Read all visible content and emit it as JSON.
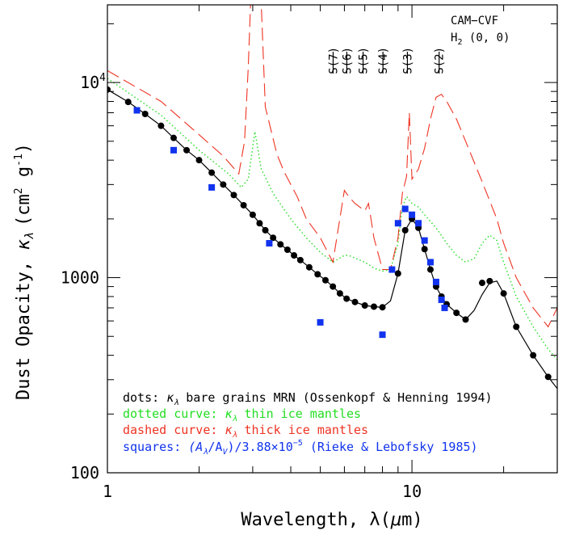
{
  "chart_data": {
    "type": "line",
    "xlabel_prefix": "Wavelength, λ(",
    "xlabel_unit_mu": "μ",
    "xlabel_unit_rest": "m)",
    "ylabel_prefix": "Dust Opacity, ",
    "ylabel_kappa": "κ",
    "ylabel_sub": "λ",
    "ylabel_unit": "(cm",
    "ylabel_unit_sup": "2",
    "ylabel_unit_g": " g",
    "ylabel_unit_sup2": "-1",
    "ylabel_unit_close": ")",
    "x_scale": "log",
    "y_scale": "log",
    "xlim": [
      1,
      30
    ],
    "ylim": [
      100,
      25000
    ],
    "x_tick_labels": [
      {
        "value": 1,
        "label": "1"
      },
      {
        "value": 10,
        "label": "10"
      }
    ],
    "y_tick_labels": [
      {
        "value": 100,
        "label": "100"
      },
      {
        "value": 1000,
        "label": "1000"
      },
      {
        "value": 10000,
        "label": "10",
        "sup": "4"
      }
    ],
    "annotation": {
      "line1": "CAM−CVF",
      "line2_prefix": "H",
      "line2_sub": "2",
      "line2_suffix": " (0, 0)"
    },
    "h2_lines": [
      {
        "label": "S(7)",
        "wavelength": 5.51
      },
      {
        "label": "S(6)",
        "wavelength": 6.11
      },
      {
        "label": "S(5)",
        "wavelength": 6.91
      },
      {
        "label": "S(4)",
        "wavelength": 8.03
      },
      {
        "label": "S(3)",
        "wavelength": 9.66
      },
      {
        "label": "S(2)",
        "wavelength": 12.28
      }
    ],
    "legend": [
      {
        "prefix": "dots: ",
        "sym": "κ",
        "sub": "λ",
        "text": " bare grains MRN (Ossenkopf & Henning 1994)",
        "color": "#000000"
      },
      {
        "prefix": "dotted curve: ",
        "sym": "κ",
        "sub": "λ",
        "text": " thin ice mantles",
        "color": "#22dd22"
      },
      {
        "prefix": "dashed curve: ",
        "sym": "κ",
        "sub": "λ",
        "text": " thick ice mantles",
        "color": "#ee3322"
      },
      {
        "prefix": "squares: ",
        "sym": "(A",
        "sub": "λ",
        "text": "/A",
        "sub2": "V",
        "text2": ")/3.88×10",
        "sup": "−5",
        "text3": " (Rieke & Lebofsky 1985)",
        "color": "#1133ee"
      }
    ],
    "series": [
      {
        "key": "bare",
        "style": "solid-with-dots",
        "color": "#000000",
        "x": [
          1.0,
          1.17,
          1.33,
          1.5,
          1.65,
          1.82,
          2.0,
          2.2,
          2.4,
          2.6,
          2.8,
          3.0,
          3.16,
          3.3,
          3.5,
          3.7,
          3.9,
          4.1,
          4.3,
          4.6,
          4.9,
          5.2,
          5.5,
          5.8,
          6.1,
          6.5,
          7.0,
          7.5,
          8.0,
          8.5,
          9.0,
          9.5,
          10.0,
          10.5,
          11.0,
          11.5,
          12.0,
          12.5,
          13.0,
          14.0,
          15.0,
          16.0,
          17.0,
          18.0,
          19.0,
          20.0,
          22.0,
          25.0,
          28.0,
          30.0
        ],
        "y": [
          9200,
          7950,
          6900,
          6000,
          5200,
          4500,
          4000,
          3450,
          3000,
          2650,
          2350,
          2100,
          1900,
          1750,
          1600,
          1480,
          1390,
          1300,
          1230,
          1130,
          1040,
          970,
          900,
          830,
          780,
          750,
          720,
          710,
          705,
          760,
          1050,
          1750,
          2000,
          1800,
          1400,
          1100,
          900,
          800,
          730,
          660,
          610,
          680,
          820,
          940,
          960,
          830,
          560,
          400,
          310,
          270
        ],
        "markers_x": [
          1.0,
          1.17,
          1.33,
          1.5,
          1.65,
          1.82,
          2.0,
          2.2,
          2.4,
          2.6,
          2.8,
          3.0,
          3.16,
          3.3,
          3.5,
          3.7,
          3.9,
          4.1,
          4.3,
          4.6,
          4.9,
          5.2,
          5.5,
          5.8,
          6.1,
          6.5,
          7.0,
          7.5,
          8.0,
          9.0,
          9.5,
          10.0,
          10.5,
          11.0,
          11.5,
          12.0,
          12.5,
          13.0,
          14.0,
          15.0,
          17.0,
          18.0,
          20.0,
          22.0,
          25.0,
          28.0
        ],
        "markers_y": [
          9200,
          7950,
          6900,
          6000,
          5200,
          4500,
          4000,
          3450,
          3000,
          2650,
          2350,
          2100,
          1900,
          1750,
          1600,
          1480,
          1390,
          1300,
          1230,
          1130,
          1040,
          970,
          900,
          830,
          780,
          750,
          720,
          710,
          705,
          1050,
          1750,
          2000,
          1800,
          1400,
          1100,
          900,
          800,
          730,
          660,
          610,
          940,
          960,
          830,
          560,
          400,
          310
        ]
      },
      {
        "key": "thin",
        "style": "dotted",
        "color": "#22dd22",
        "x": [
          1.0,
          1.5,
          2.0,
          2.5,
          2.75,
          2.9,
          3.05,
          3.2,
          3.5,
          4.0,
          4.5,
          5.0,
          5.5,
          6.0,
          6.2,
          7.0,
          7.5,
          8.0,
          8.5,
          9.0,
          9.3,
          9.6,
          9.8,
          10.0,
          10.5,
          11.0,
          12.0,
          13.0,
          14.0,
          15.0,
          16.0,
          17.0,
          18.0,
          19.0,
          20.0,
          22.0,
          25.0,
          28.0,
          30.0
        ],
        "y": [
          10500,
          6800,
          4500,
          3400,
          2900,
          3200,
          5600,
          3600,
          2700,
          2000,
          1600,
          1350,
          1200,
          1300,
          1300,
          1200,
          1120,
          1080,
          1100,
          1500,
          2300,
          2600,
          2500,
          2400,
          2300,
          2100,
          1800,
          1500,
          1300,
          1200,
          1250,
          1500,
          1650,
          1550,
          1200,
          800,
          560,
          430,
          380
        ]
      },
      {
        "key": "thick",
        "style": "dashed",
        "color": "#ee3322",
        "x": [
          1.0,
          1.5,
          2.0,
          2.4,
          2.7,
          2.82,
          2.9,
          2.95,
          3.0,
          3.1,
          3.2,
          3.3,
          3.6,
          3.8,
          4.0,
          4.2,
          4.5,
          5.0,
          5.5,
          6.0,
          6.2,
          6.5,
          7.0,
          7.2,
          7.5,
          8.0,
          8.5,
          9.0,
          9.3,
          9.6,
          9.8,
          10.0,
          10.5,
          11.0,
          11.5,
          12.0,
          12.5,
          13.0,
          14.0,
          15.0,
          17.0,
          19.0,
          20.0,
          22.0,
          25.0,
          28.0,
          30.0
        ],
        "y": [
          11500,
          8000,
          5400,
          4200,
          3400,
          5000,
          12000,
          30000,
          30000,
          30000,
          30000,
          7500,
          4300,
          3500,
          3000,
          2600,
          2000,
          1600,
          1200,
          2800,
          2600,
          2400,
          2200,
          2400,
          1600,
          1100,
          1100,
          1600,
          2700,
          3300,
          7000,
          3200,
          3600,
          4600,
          6500,
          8400,
          8700,
          8000,
          6500,
          5000,
          3100,
          2000,
          1500,
          1000,
          700,
          560,
          700
        ]
      },
      {
        "key": "squares",
        "style": "squares",
        "color": "#1133ee",
        "x": [
          1.25,
          1.65,
          2.2,
          3.4,
          5.0,
          8.0,
          8.6,
          9.0,
          9.5,
          10.0,
          10.5,
          11.0,
          11.5,
          12.0,
          12.5,
          12.8
        ],
        "y": [
          7200,
          4500,
          2900,
          1500,
          590,
          510,
          1100,
          1900,
          2250,
          2100,
          1900,
          1550,
          1200,
          950,
          770,
          700
        ]
      }
    ]
  }
}
